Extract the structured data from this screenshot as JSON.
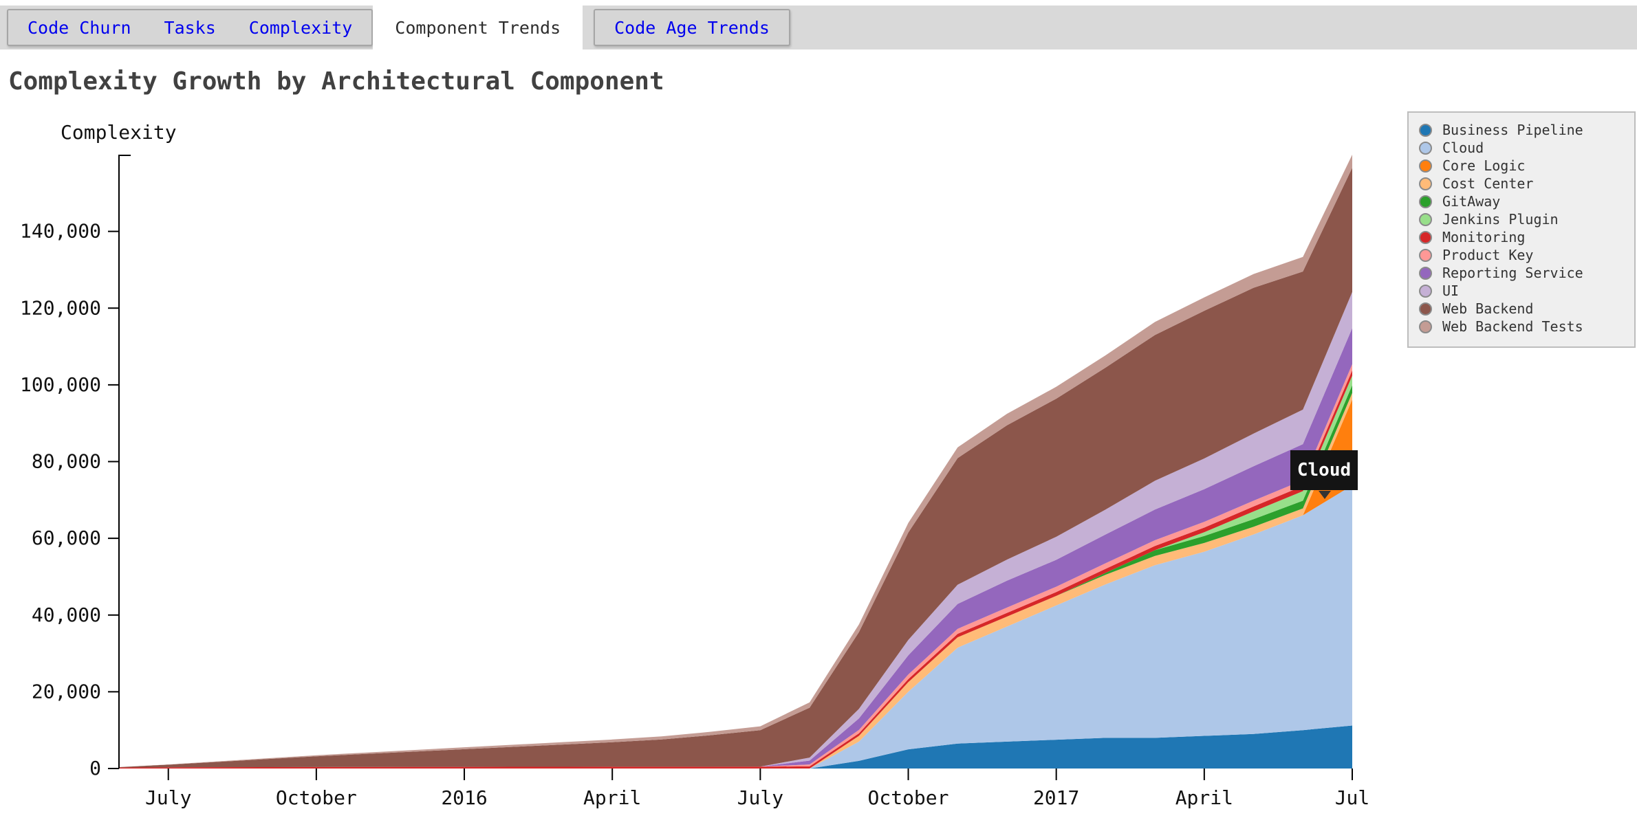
{
  "tabs": {
    "items": [
      {
        "label": "Code Churn",
        "active": false
      },
      {
        "label": "Tasks",
        "active": false
      },
      {
        "label": "Complexity",
        "active": false
      },
      {
        "label": "Component Trends",
        "active": true
      },
      {
        "label": "Code Age Trends",
        "active": false
      }
    ]
  },
  "page_title": "Complexity Growth by Architectural Component",
  "tooltip": {
    "label": "Cloud"
  },
  "colors": {
    "tab_link": "#0000EE",
    "tab_active_text": "#2e2e2e",
    "title_text": "#414141",
    "tooltip_bg": "#141414",
    "tooltip_text": "#ffffff",
    "legend_bg": "#efefef",
    "legend_border": "#bdbdbd",
    "axis": "#000000"
  },
  "chart_data": {
    "type": "area",
    "stacked": true,
    "title": "Complexity Growth by Architectural Component",
    "xlabel": "",
    "ylabel": "Complexity",
    "ylim": [
      0,
      160000
    ],
    "y_ticks": [
      0,
      20000,
      40000,
      60000,
      80000,
      100000,
      120000,
      140000
    ],
    "grid": false,
    "legend_position": "right",
    "x": [
      "2015-06",
      "2015-07",
      "2015-08",
      "2015-09",
      "2015-10",
      "2015-11",
      "2015-12",
      "2016-01",
      "2016-02",
      "2016-03",
      "2016-04",
      "2016-05",
      "2016-06",
      "2016-07",
      "2016-08",
      "2016-09",
      "2016-10",
      "2016-11",
      "2016-12",
      "2017-01",
      "2017-02",
      "2017-03",
      "2017-04",
      "2017-05",
      "2017-06",
      "2017-07"
    ],
    "x_tick_positions": [
      1,
      4,
      7,
      10,
      13,
      16,
      19,
      22,
      25
    ],
    "x_tick_labels": [
      "July",
      "October",
      "2016",
      "April",
      "July",
      "October",
      "2017",
      "April",
      "Jul"
    ],
    "series": [
      {
        "name": "Business Pipeline",
        "color": "#1f77b4",
        "values": [
          0,
          0,
          0,
          0,
          0,
          0,
          0,
          0,
          0,
          0,
          0,
          0,
          0,
          0,
          0,
          2000,
          5000,
          6500,
          7000,
          7500,
          8000,
          8000,
          8500,
          9000,
          10000,
          11200
        ]
      },
      {
        "name": "Cloud",
        "color": "#aec7e8",
        "values": [
          0,
          0,
          0,
          0,
          0,
          0,
          0,
          0,
          0,
          0,
          0,
          0,
          0,
          0,
          0,
          5000,
          15000,
          25000,
          30000,
          35000,
          40000,
          45000,
          48000,
          52000,
          56000,
          62600
        ]
      },
      {
        "name": "Core Logic",
        "color": "#ff7f0e",
        "values": [
          0,
          0,
          0,
          0,
          0,
          0,
          0,
          0,
          0,
          0,
          0,
          0,
          0,
          0,
          0,
          0,
          0,
          0,
          0,
          0,
          0,
          0,
          0,
          0,
          0,
          22400
        ]
      },
      {
        "name": "Cost Center",
        "color": "#ffbb78",
        "values": [
          0,
          0,
          0,
          0,
          0,
          0,
          0,
          0,
          0,
          0,
          0,
          0,
          0,
          0,
          0,
          1500,
          2500,
          2700,
          2600,
          2500,
          2500,
          2400,
          2300,
          2000,
          1800,
          1700
        ]
      },
      {
        "name": "GitAway",
        "color": "#2ca02c",
        "values": [
          0,
          0,
          0,
          0,
          0,
          0,
          0,
          0,
          0,
          0,
          0,
          0,
          0,
          0,
          0,
          0,
          0,
          0,
          0,
          0,
          500,
          1500,
          1800,
          2000,
          2000,
          2000
        ]
      },
      {
        "name": "Jenkins Plugin",
        "color": "#98df8a",
        "values": [
          0,
          0,
          0,
          0,
          0,
          0,
          0,
          0,
          0,
          0,
          0,
          0,
          0,
          0,
          0,
          0,
          0,
          0,
          0,
          0,
          0,
          0,
          1000,
          2000,
          2500,
          2500
        ]
      },
      {
        "name": "Monitoring",
        "color": "#d62728",
        "values": [
          250,
          300,
          330,
          360,
          380,
          400,
          420,
          430,
          440,
          450,
          460,
          470,
          480,
          500,
          550,
          650,
          800,
          900,
          950,
          1000,
          1050,
          1100,
          1200,
          1300,
          1350,
          1400
        ]
      },
      {
        "name": "Product Key",
        "color": "#ff9896",
        "values": [
          0,
          0,
          0,
          0,
          0,
          0,
          0,
          0,
          0,
          0,
          0,
          0,
          0,
          0,
          500,
          900,
          1200,
          1300,
          1400,
          1400,
          1450,
          1500,
          1500,
          1500,
          1500,
          1600
        ]
      },
      {
        "name": "Reporting Service",
        "color": "#9467bd",
        "values": [
          0,
          0,
          0,
          0,
          0,
          0,
          0,
          0,
          0,
          0,
          0,
          0,
          0,
          0,
          1000,
          3000,
          5000,
          6500,
          7000,
          7000,
          7500,
          8000,
          8500,
          9000,
          9400,
          9400
        ]
      },
      {
        "name": "UI",
        "color": "#c5b0d5",
        "values": [
          0,
          0,
          0,
          0,
          0,
          0,
          0,
          0,
          0,
          0,
          0,
          0,
          0,
          0,
          800,
          2500,
          4000,
          5000,
          5500,
          6000,
          6500,
          7500,
          8000,
          8500,
          9000,
          9400
        ]
      },
      {
        "name": "Web Backend",
        "color": "#8c564b",
        "values": [
          100,
          700,
          1400,
          2100,
          2800,
          3400,
          4000,
          4600,
          5200,
          5800,
          6400,
          7100,
          8200,
          9500,
          13000,
          20000,
          28000,
          33000,
          35000,
          36000,
          37000,
          38000,
          38500,
          38000,
          36000,
          32400
        ]
      },
      {
        "name": "Web Backend Tests",
        "color": "#c49c94",
        "values": [
          0,
          50,
          120,
          200,
          280,
          350,
          420,
          500,
          560,
          620,
          700,
          800,
          900,
          1000,
          1400,
          2000,
          2500,
          2800,
          3000,
          3100,
          3200,
          3400,
          3500,
          3600,
          3800,
          3900
        ]
      }
    ]
  }
}
